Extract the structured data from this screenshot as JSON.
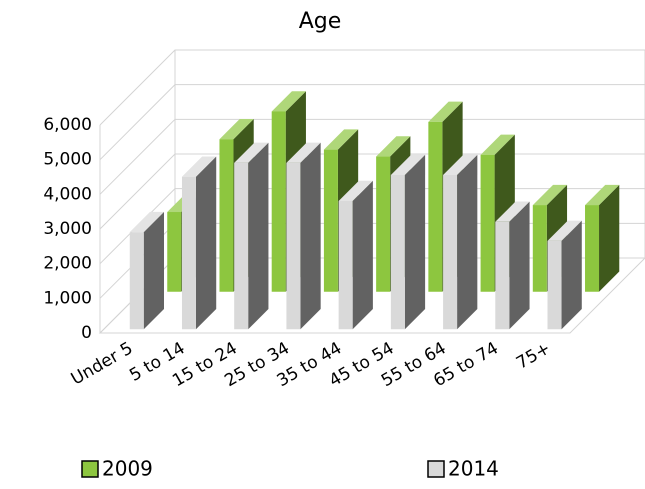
{
  "chart_data": {
    "type": "bar3d",
    "title": "Age",
    "categories": [
      "Under 5",
      "5 to 14",
      "15 to 24",
      "25 to 34",
      "35 to 44",
      "45 to 54",
      "55 to 64",
      "65 to 74",
      "75+"
    ],
    "series": [
      {
        "name": "2009",
        "color": "#8dc63f",
        "values": [
          2300,
          4400,
          5200,
          4100,
          3900,
          4900,
          3950,
          2500,
          2500
        ]
      },
      {
        "name": "2014",
        "color": "#d9d9d9",
        "values": [
          2800,
          4400,
          4800,
          4800,
          3700,
          4450,
          4450,
          3100,
          2550
        ]
      }
    ],
    "ylim": [
      0,
      6000
    ],
    "yticks": [
      0,
      {
        "value": 1000,
        "label": "1,000"
      },
      {
        "value": 2000,
        "label": "2,000"
      },
      {
        "value": 3000,
        "label": "3,000"
      },
      {
        "value": 4000,
        "label": "4,000"
      },
      {
        "value": 5000,
        "label": "5,000"
      },
      {
        "value": 6000,
        "label": "6,000"
      }
    ],
    "grid": true,
    "legend": "bottom"
  }
}
